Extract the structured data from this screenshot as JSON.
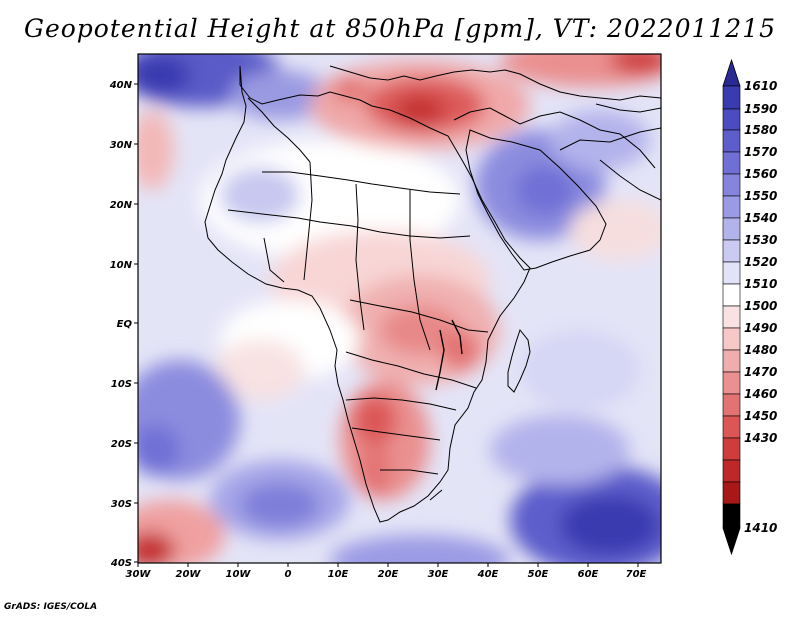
{
  "title": "Geopotential Height at 850hPa [gpm], VT: 2022011215",
  "footer": "GrADS: IGES/COLA",
  "map": {
    "lon_ticks": [
      "30W",
      "20W",
      "10W",
      "0",
      "10E",
      "20E",
      "30E",
      "40E",
      "50E",
      "60E",
      "70E"
    ],
    "lat_ticks": [
      "40N",
      "30N",
      "20N",
      "10N",
      "EQ",
      "10S",
      "20S",
      "30S",
      "40S"
    ]
  },
  "colorbar": {
    "labels": [
      "1610",
      "1590",
      "1580",
      "1570",
      "1560",
      "1550",
      "1540",
      "1530",
      "1520",
      "1510",
      "1500",
      "1490",
      "1480",
      "1470",
      "1460",
      "1450",
      "1430",
      "1410"
    ],
    "colors": {
      "top_triangle": "#2a2a95",
      "b1610": "#3b3bb0",
      "b1590": "#4c4cc0",
      "b1580": "#5d5dcc",
      "b1570": "#6f6fd6",
      "b1560": "#8585dd",
      "b1550": "#9b9be5",
      "b1540": "#b3b3ec",
      "b1530": "#cacaf2",
      "b1520": "#e2e2f8",
      "b1510": "#ffffff",
      "b1500": "#fbe2e2",
      "b1490": "#f6c8c8",
      "b1480": "#f0adad",
      "b1470": "#ea9090",
      "b1460": "#e37272",
      "b1450": "#dc5656",
      "b1430": "#cf3c3c",
      "b1410": "#bf2828",
      "bottom_triangle": "#a81818"
    }
  }
}
